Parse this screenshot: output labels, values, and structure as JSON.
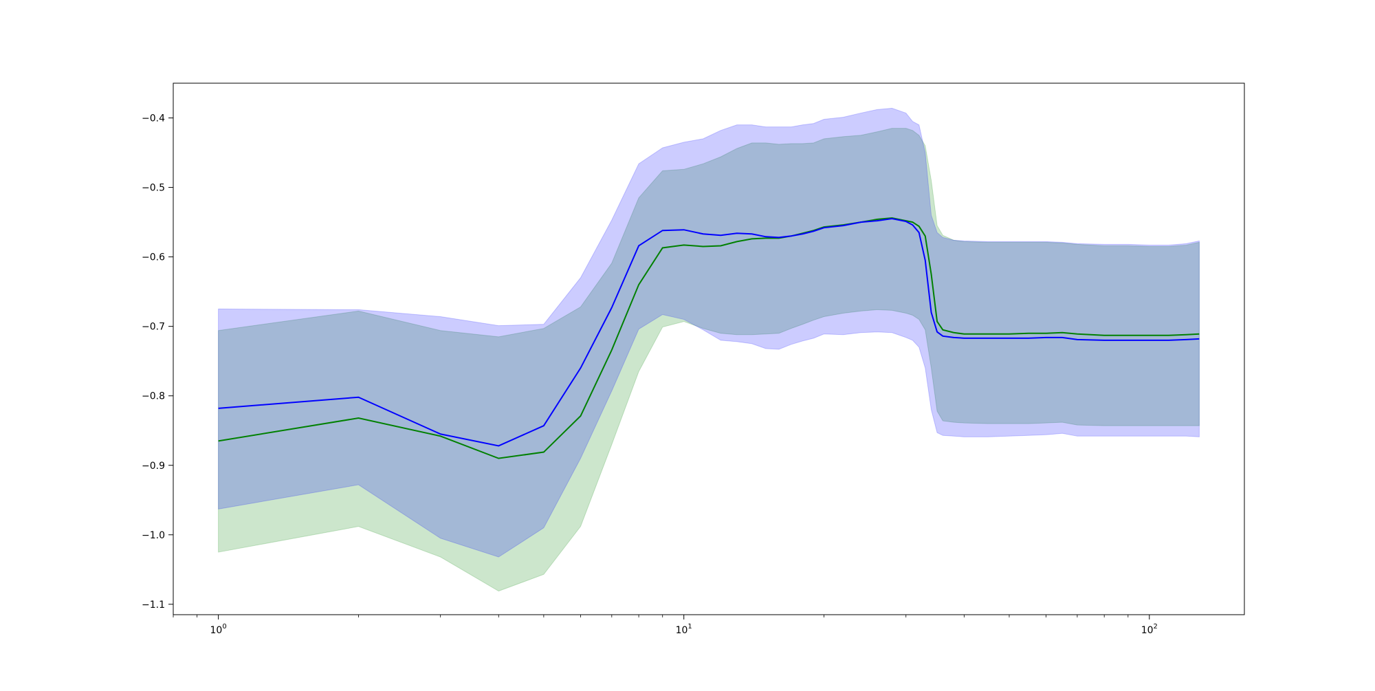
{
  "chart_data": {
    "type": "line",
    "title": "",
    "xlabel": "",
    "ylabel": "",
    "xscale": "log",
    "xlim": [
      0.8,
      160
    ],
    "ylim": [
      -1.115,
      -0.35
    ],
    "grid": false,
    "legend": "none",
    "x_ticks": [
      {
        "value": 1,
        "label": "10",
        "exp": "0"
      },
      {
        "value": 10,
        "label": "10",
        "exp": "1"
      },
      {
        "value": 100,
        "label": "10",
        "exp": "2"
      }
    ],
    "y_ticks": [
      {
        "value": -0.4,
        "label": "−0.4"
      },
      {
        "value": -0.5,
        "label": "−0.5"
      },
      {
        "value": -0.6,
        "label": "−0.6"
      },
      {
        "value": -0.7,
        "label": "−0.7"
      },
      {
        "value": -0.8,
        "label": "−0.8"
      },
      {
        "value": -0.9,
        "label": "−0.9"
      },
      {
        "value": -1.0,
        "label": "−1.0"
      },
      {
        "value": -1.1,
        "label": "−1.1"
      }
    ],
    "x": [
      1,
      2,
      3,
      4,
      5,
      6,
      7,
      8,
      9,
      10,
      11,
      12,
      13,
      14,
      15,
      16,
      17,
      18,
      19,
      20,
      22,
      24,
      26,
      28,
      30,
      31,
      32,
      33,
      34,
      35,
      36,
      38,
      40,
      45,
      50,
      55,
      60,
      65,
      70,
      80,
      90,
      100,
      110,
      120,
      128
    ],
    "series": [
      {
        "color": "#0000ff",
        "band_color": "#0000ff",
        "values": [
          -0.818,
          -0.802,
          -0.855,
          -0.872,
          -0.843,
          -0.76,
          -0.673,
          -0.584,
          -0.562,
          -0.561,
          -0.567,
          -0.569,
          -0.566,
          -0.567,
          -0.571,
          -0.572,
          -0.57,
          -0.567,
          -0.563,
          -0.558,
          -0.555,
          -0.55,
          -0.548,
          -0.545,
          -0.549,
          -0.554,
          -0.565,
          -0.605,
          -0.68,
          -0.708,
          -0.714,
          -0.716,
          -0.717,
          -0.717,
          -0.717,
          -0.717,
          -0.716,
          -0.716,
          -0.719,
          -0.72,
          -0.72,
          -0.72,
          -0.72,
          -0.719,
          -0.718
        ],
        "upper": [
          -0.675,
          -0.676,
          -0.686,
          -0.699,
          -0.697,
          -0.63,
          -0.547,
          -0.466,
          -0.443,
          -0.435,
          -0.43,
          -0.418,
          -0.41,
          -0.41,
          -0.413,
          -0.413,
          -0.413,
          -0.41,
          -0.408,
          -0.402,
          -0.399,
          -0.393,
          -0.388,
          -0.386,
          -0.393,
          -0.405,
          -0.41,
          -0.45,
          -0.54,
          -0.565,
          -0.572,
          -0.576,
          -0.577,
          -0.578,
          -0.578,
          -0.578,
          -0.578,
          -0.579,
          -0.581,
          -0.582,
          -0.582,
          -0.583,
          -0.583,
          -0.581,
          -0.577
        ],
        "lower": [
          -0.963,
          -0.928,
          -1.005,
          -1.032,
          -0.99,
          -0.89,
          -0.793,
          -0.704,
          -0.683,
          -0.69,
          -0.705,
          -0.72,
          -0.722,
          -0.725,
          -0.732,
          -0.733,
          -0.726,
          -0.721,
          -0.717,
          -0.711,
          -0.712,
          -0.709,
          -0.708,
          -0.709,
          -0.716,
          -0.72,
          -0.73,
          -0.76,
          -0.82,
          -0.853,
          -0.857,
          -0.858,
          -0.859,
          -0.859,
          -0.858,
          -0.857,
          -0.856,
          -0.854,
          -0.858,
          -0.858,
          -0.858,
          -0.858,
          -0.858,
          -0.858,
          -0.859
        ]
      },
      {
        "color": "#008000",
        "band_color": "#008000",
        "values": [
          -0.865,
          -0.832,
          -0.858,
          -0.89,
          -0.881,
          -0.829,
          -0.734,
          -0.64,
          -0.587,
          -0.583,
          -0.585,
          -0.584,
          -0.578,
          -0.574,
          -0.573,
          -0.573,
          -0.57,
          -0.566,
          -0.562,
          -0.557,
          -0.554,
          -0.55,
          -0.546,
          -0.544,
          -0.548,
          -0.55,
          -0.556,
          -0.57,
          -0.625,
          -0.693,
          -0.705,
          -0.709,
          -0.711,
          -0.711,
          -0.711,
          -0.71,
          -0.71,
          -0.709,
          -0.711,
          -0.713,
          -0.713,
          -0.713,
          -0.713,
          -0.712,
          -0.711
        ],
        "upper": [
          -0.706,
          -0.678,
          -0.706,
          -0.715,
          -0.703,
          -0.672,
          -0.609,
          -0.515,
          -0.476,
          -0.474,
          -0.466,
          -0.456,
          -0.444,
          -0.436,
          -0.436,
          -0.438,
          -0.437,
          -0.437,
          -0.436,
          -0.43,
          -0.427,
          -0.425,
          -0.42,
          -0.415,
          -0.415,
          -0.418,
          -0.425,
          -0.44,
          -0.49,
          -0.555,
          -0.569,
          -0.576,
          -0.578,
          -0.579,
          -0.579,
          -0.579,
          -0.579,
          -0.58,
          -0.582,
          -0.584,
          -0.584,
          -0.585,
          -0.585,
          -0.583,
          -0.579
        ],
        "lower": [
          -1.025,
          -0.988,
          -1.032,
          -1.081,
          -1.057,
          -0.988,
          -0.87,
          -0.765,
          -0.701,
          -0.693,
          -0.703,
          -0.71,
          -0.712,
          -0.712,
          -0.711,
          -0.71,
          -0.703,
          -0.697,
          -0.691,
          -0.686,
          -0.681,
          -0.678,
          -0.676,
          -0.677,
          -0.681,
          -0.684,
          -0.69,
          -0.705,
          -0.76,
          -0.822,
          -0.836,
          -0.838,
          -0.839,
          -0.84,
          -0.84,
          -0.84,
          -0.839,
          -0.838,
          -0.842,
          -0.843,
          -0.843,
          -0.843,
          -0.843,
          -0.843,
          -0.843
        ]
      }
    ]
  }
}
